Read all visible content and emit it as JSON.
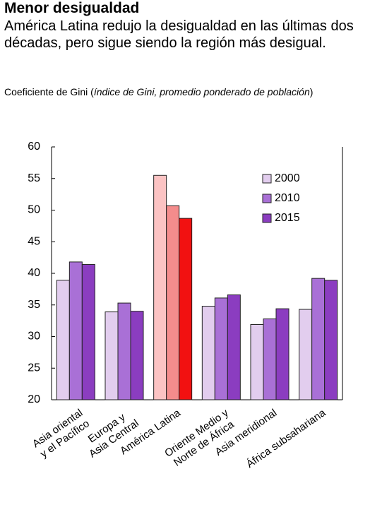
{
  "chart_data": {
    "type": "bar",
    "title": "Menor desigualdad",
    "subtitle": "América Latina redujo la desigualdad en las últimas dos décadas, pero sigue siendo la región más desigual.",
    "note_parts": [
      "Coeficiente de Gini (",
      "índice de Gini, promedio ponderado de población",
      ")"
    ],
    "categories": [
      "Asia oriental\ny el Pacífico",
      "Europa y\nAsia Central",
      "América Latina",
      "Oriente Medio y\nNorte de África",
      "Asia meridional",
      "África subsahariana"
    ],
    "series": [
      {
        "name": "2000",
        "color": "#e2cdee",
        "colors": [
          "#e2cdee",
          "#e2cdee",
          "#fbc3c3",
          "#e2cdee",
          "#e2cdee",
          "#e2cdee"
        ],
        "values": [
          38.9,
          33.9,
          55.5,
          34.8,
          31.9,
          34.3
        ]
      },
      {
        "name": "2010",
        "color": "#a970d6",
        "colors": [
          "#a970d6",
          "#a970d6",
          "#f48c8c",
          "#a970d6",
          "#a970d6",
          "#a970d6"
        ],
        "values": [
          41.8,
          35.3,
          50.7,
          36.1,
          32.8,
          39.2
        ]
      },
      {
        "name": "2015",
        "color": "#8b3dc0",
        "colors": [
          "#8b3dc0",
          "#8b3dc0",
          "#f21111",
          "#8b3dc0",
          "#8b3dc0",
          "#8b3dc0"
        ],
        "values": [
          41.4,
          34.0,
          48.7,
          36.6,
          34.4,
          38.9
        ]
      }
    ],
    "ylim": [
      20,
      60
    ],
    "yticks": [
      20,
      25,
      30,
      35,
      40,
      45,
      50,
      55,
      60
    ],
    "grid": false,
    "legend": "upper right"
  }
}
